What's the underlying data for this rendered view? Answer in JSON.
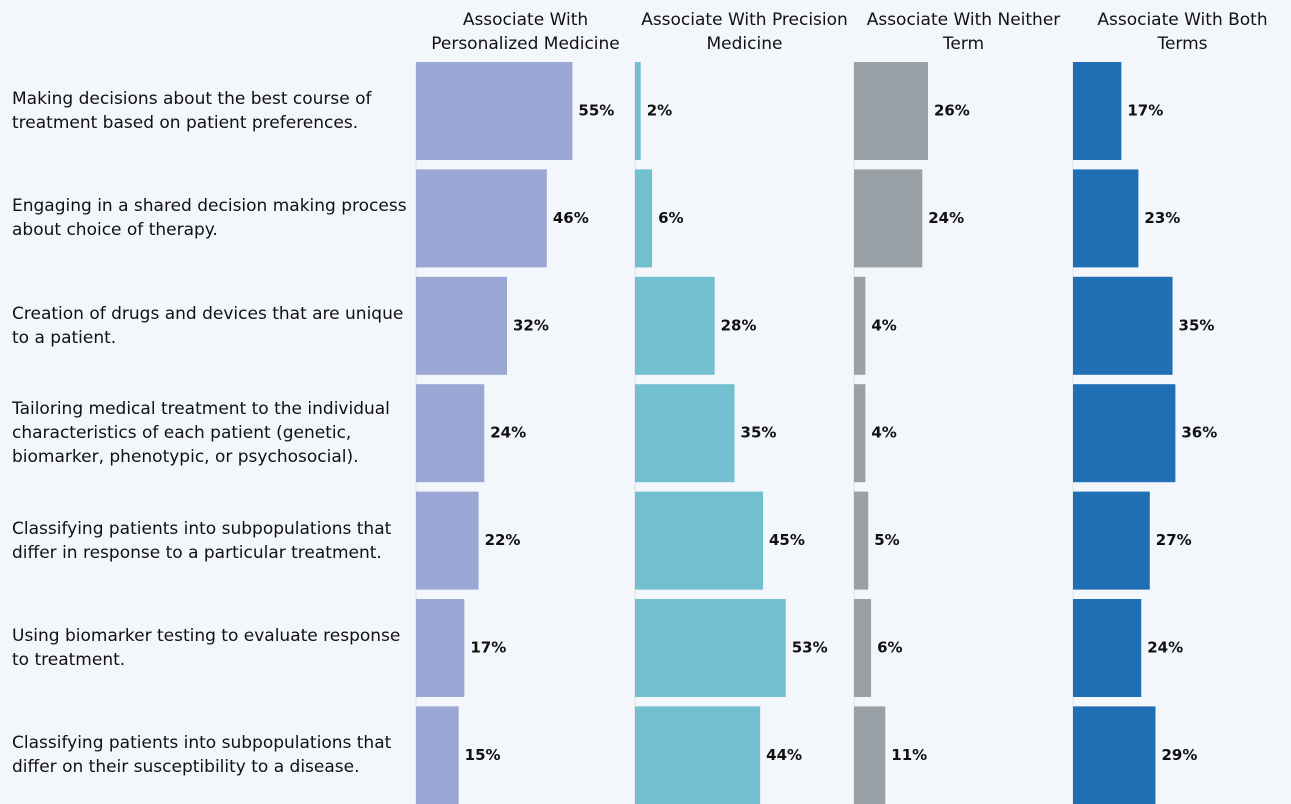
{
  "chart_data": {
    "type": "bar",
    "orientation": "horizontal",
    "categories": [
      "Making decisions about the best course of treatment based on patient preferences.",
      "Engaging in a shared decision making process about choice of therapy.",
      "Creation of drugs and devices that are unique to a patient.",
      "Tailoring medical treatment to the individual characteristics of each patient (genetic, biomarker, phenotypic, or psychosocial).",
      "Classifying patients into subpopulations that differ in response to a particular treatment.",
      "Using biomarker testing to evaluate response to treatment.",
      "Classifying patients into subpopulations that differ on their susceptibility to a disease."
    ],
    "series": [
      {
        "name": "Associate With Personalized Medicine",
        "color": "#9aa6d3",
        "values": [
          55,
          46,
          32,
          24,
          22,
          17,
          15
        ],
        "value_labels": [
          "55%",
          "46%",
          "32%",
          "24%",
          "22%",
          "17%",
          "15%"
        ]
      },
      {
        "name": "Associate With Precision Medicine",
        "color": "#72bfcf",
        "values": [
          2,
          6,
          28,
          35,
          45,
          53,
          44
        ],
        "value_labels": [
          "2%",
          "6%",
          "28%",
          "35%",
          "45%",
          "53%",
          "44%"
        ]
      },
      {
        "name": "Associate With Neither Term",
        "color": "#9aa1a6",
        "values": [
          26,
          24,
          4,
          4,
          5,
          6,
          11
        ],
        "value_labels": [
          "26%",
          "24%",
          "4%",
          "4%",
          "5%",
          "6%",
          "11%"
        ]
      },
      {
        "name": "Associate With Both Terms",
        "color": "#206fb5",
        "values": [
          17,
          23,
          35,
          36,
          27,
          24,
          29
        ],
        "value_labels": [
          "17%",
          "23%",
          "35%",
          "36%",
          "27%",
          "24%",
          "29%"
        ]
      }
    ],
    "xlim": [
      0,
      77
    ]
  }
}
